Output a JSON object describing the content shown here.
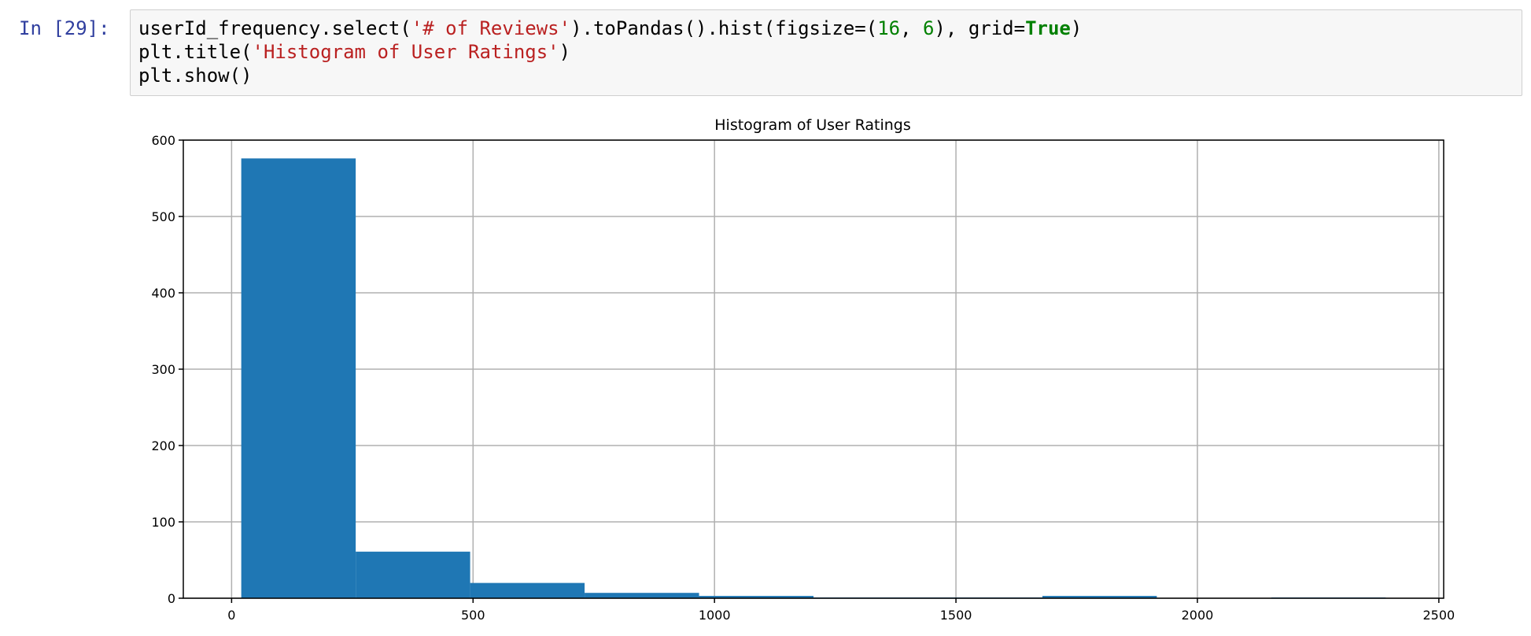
{
  "cell": {
    "prompt": "In [29]:",
    "code": {
      "line1": {
        "p1": "userId_frequency.select(",
        "s1": "'# of Reviews'",
        "p2": ").toPandas().hist(figsize=(",
        "n1": "16",
        "p3": ", ",
        "n2": "6",
        "p4": "), grid=",
        "k1": "True",
        "p5": ")"
      },
      "line2": {
        "p1": "plt.title(",
        "s1": "'Histogram of User Ratings'",
        "p2": ")"
      },
      "line3": {
        "p1": "plt.show()"
      }
    }
  },
  "chart_data": {
    "type": "bar",
    "title": "Histogram of User Ratings",
    "xlabel": "",
    "ylabel": "",
    "xlim": [
      -100,
      2510
    ],
    "ylim": [
      0,
      600
    ],
    "xticks": [
      "0",
      "500",
      "1000",
      "1500",
      "2000",
      "2500"
    ],
    "yticks": [
      "0",
      "100",
      "200",
      "300",
      "400",
      "500",
      "600"
    ],
    "grid": true,
    "bar_color": "#1f77b4",
    "bin_edges": [
      20,
      257,
      494,
      731,
      968,
      1205,
      1442,
      1679,
      1916,
      2153,
      2390
    ],
    "values": [
      576,
      61,
      20,
      7,
      3,
      1,
      1,
      3,
      0,
      1
    ]
  }
}
